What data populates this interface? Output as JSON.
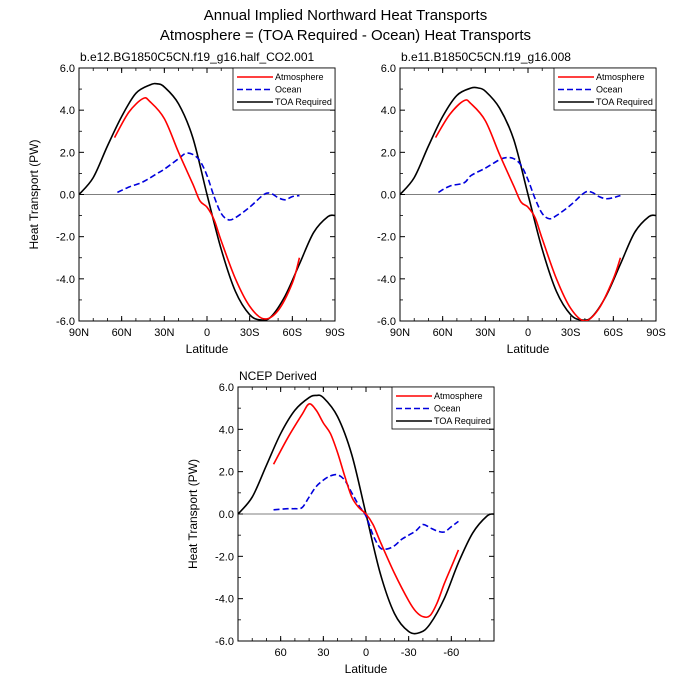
{
  "figure": {
    "title_line1": "Annual Implied Northward Heat Transports",
    "title_line2": "Atmosphere = (TOA Required - Ocean) Heat Transports"
  },
  "colors": {
    "atmosphere": "#ff0000",
    "ocean": "#0000dd",
    "toa": "#000000"
  },
  "chart_data": [
    {
      "type": "line",
      "title": "b.e12.BG1850C5CN.f19_g16.half_CO2.001",
      "xlabel": "Latitude",
      "ylabel": "Heat Transport (PW)",
      "xlim": [
        90,
        -90
      ],
      "ylim": [
        -6,
        6
      ],
      "xticks": [
        90,
        60,
        30,
        0,
        -30,
        -60,
        -90
      ],
      "xtick_labels": [
        "90N",
        "60N",
        "30N",
        "0",
        "30S",
        "60S",
        "90S"
      ],
      "yticks": [
        -6,
        -4,
        -2,
        0,
        2,
        4,
        6
      ],
      "ytick_labels": [
        "-6.0",
        "-4.0",
        "-2.0",
        "0.0",
        "2.0",
        "4.0",
        "6.0"
      ],
      "legend": [
        "Atmosphere",
        "Ocean",
        "TOA Required"
      ],
      "legend_position": "top-right",
      "series": [
        {
          "name": "Atmosphere",
          "style": "solid",
          "color": "#ff0000",
          "x": [
            65,
            55,
            45,
            40,
            30,
            20,
            10,
            5,
            0,
            -5,
            -10,
            -20,
            -30,
            -40,
            -50,
            -60,
            -65
          ],
          "y": [
            2.7,
            3.9,
            4.55,
            4.4,
            3.6,
            2.0,
            0.5,
            -0.3,
            -0.6,
            -1.2,
            -2.2,
            -4.0,
            -5.3,
            -5.9,
            -5.5,
            -4.2,
            -3.0
          ]
        },
        {
          "name": "Ocean",
          "style": "dashed",
          "color": "#0000dd",
          "x": [
            63,
            55,
            45,
            35,
            30,
            20,
            15,
            10,
            5,
            0,
            -5,
            -10,
            -15,
            -20,
            -30,
            -40,
            -45,
            -50,
            -55,
            -60,
            -65
          ],
          "y": [
            0.1,
            0.35,
            0.6,
            1.0,
            1.2,
            1.7,
            1.95,
            1.9,
            1.6,
            0.9,
            -0.1,
            -0.9,
            -1.2,
            -1.1,
            -0.6,
            0.0,
            0.05,
            -0.15,
            -0.25,
            -0.1,
            -0.05
          ]
        },
        {
          "name": "TOA Required",
          "style": "solid",
          "color": "#000000",
          "x": [
            90,
            80,
            70,
            60,
            50,
            40,
            35,
            30,
            20,
            10,
            0,
            -10,
            -20,
            -30,
            -38,
            -45,
            -55,
            -65,
            -75,
            -85,
            -90
          ],
          "y": [
            0.0,
            0.8,
            2.3,
            3.7,
            4.8,
            5.2,
            5.25,
            5.1,
            4.3,
            2.7,
            0.0,
            -2.6,
            -4.6,
            -5.7,
            -5.95,
            -5.8,
            -4.8,
            -3.3,
            -1.8,
            -1.05,
            -1.0
          ]
        }
      ]
    },
    {
      "type": "line",
      "title": "b.e11.B1850C5CN.f19_g16.008",
      "xlabel": "Latitude",
      "ylabel": "",
      "xlim": [
        90,
        -90
      ],
      "ylim": [
        -6,
        6
      ],
      "xticks": [
        90,
        60,
        30,
        0,
        -30,
        -60,
        -90
      ],
      "xtick_labels": [
        "90N",
        "60N",
        "30N",
        "0",
        "30S",
        "60S",
        "90S"
      ],
      "yticks": [
        -6,
        -4,
        -2,
        0,
        2,
        4,
        6
      ],
      "ytick_labels": [
        "-6.0",
        "-4.0",
        "-2.0",
        "0.0",
        "2.0",
        "4.0",
        "6.0"
      ],
      "legend": [
        "Atmosphere",
        "Ocean",
        "TOA Required"
      ],
      "legend_position": "top-right",
      "series": [
        {
          "name": "Atmosphere",
          "style": "solid",
          "color": "#ff0000",
          "x": [
            65,
            55,
            45,
            40,
            30,
            20,
            10,
            5,
            0,
            -5,
            -10,
            -20,
            -30,
            -40,
            -50,
            -60,
            -65
          ],
          "y": [
            2.7,
            3.8,
            4.45,
            4.3,
            3.5,
            1.9,
            0.4,
            -0.35,
            -0.6,
            -1.1,
            -2.1,
            -4.0,
            -5.4,
            -6.0,
            -5.4,
            -4.0,
            -3.0
          ]
        },
        {
          "name": "Ocean",
          "style": "dashed",
          "color": "#0000dd",
          "x": [
            63,
            55,
            45,
            40,
            30,
            20,
            15,
            10,
            5,
            0,
            -5,
            -10,
            -15,
            -20,
            -30,
            -40,
            -45,
            -50,
            -55,
            -60,
            -65
          ],
          "y": [
            0.1,
            0.4,
            0.55,
            0.9,
            1.25,
            1.65,
            1.75,
            1.7,
            1.4,
            0.7,
            -0.2,
            -0.9,
            -1.15,
            -1.0,
            -0.5,
            0.1,
            0.1,
            -0.1,
            -0.2,
            -0.15,
            -0.05
          ]
        },
        {
          "name": "TOA Required",
          "style": "solid",
          "color": "#000000",
          "x": [
            90,
            80,
            70,
            60,
            50,
            40,
            35,
            30,
            20,
            10,
            0,
            -10,
            -20,
            -30,
            -38,
            -45,
            -55,
            -65,
            -75,
            -85,
            -90
          ],
          "y": [
            0.0,
            0.8,
            2.3,
            3.7,
            4.7,
            5.05,
            5.05,
            4.9,
            4.1,
            2.6,
            0.0,
            -2.6,
            -4.6,
            -5.7,
            -5.95,
            -5.8,
            -4.8,
            -3.3,
            -1.8,
            -1.05,
            -1.0
          ]
        }
      ]
    },
    {
      "type": "line",
      "title": "NCEP Derived",
      "xlabel": "Latitude",
      "ylabel": "Heat Transport (PW)",
      "xlim": [
        90,
        -90
      ],
      "ylim": [
        -6,
        6
      ],
      "xticks": [
        60,
        30,
        0,
        -30,
        -60
      ],
      "xtick_labels": [
        "60",
        "30",
        "0",
        "-30",
        "-60"
      ],
      "yticks": [
        -6,
        -4,
        -2,
        0,
        2,
        4,
        6
      ],
      "ytick_labels": [
        "-6.0",
        "-4.0",
        "-2.0",
        "0.0",
        "2.0",
        "4.0",
        "6.0"
      ],
      "legend": [
        "Atmosphere",
        "Ocean",
        "TOA Required"
      ],
      "legend_position": "top-right",
      "series": [
        {
          "name": "Atmosphere",
          "style": "solid",
          "color": "#ff0000",
          "x": [
            65,
            55,
            45,
            40,
            35,
            30,
            25,
            20,
            15,
            10,
            5,
            0,
            -5,
            -10,
            -20,
            -30,
            -35,
            -40,
            -45,
            -50,
            -55,
            -60,
            -65
          ],
          "y": [
            2.35,
            3.6,
            4.7,
            5.2,
            4.9,
            4.3,
            3.8,
            2.9,
            1.8,
            0.8,
            0.3,
            0.0,
            -0.5,
            -1.3,
            -2.8,
            -4.1,
            -4.6,
            -4.85,
            -4.8,
            -4.2,
            -3.3,
            -2.5,
            -1.7
          ]
        },
        {
          "name": "Ocean",
          "style": "dashed",
          "color": "#0000dd",
          "x": [
            65,
            55,
            50,
            45,
            40,
            35,
            30,
            25,
            20,
            15,
            10,
            5,
            0,
            -5,
            -10,
            -15,
            -20,
            -25,
            -30,
            -35,
            -40,
            -45,
            -50,
            -55,
            -60,
            -65
          ],
          "y": [
            0.2,
            0.25,
            0.25,
            0.3,
            0.8,
            1.3,
            1.6,
            1.8,
            1.85,
            1.6,
            1.0,
            0.4,
            -0.1,
            -1.0,
            -1.6,
            -1.65,
            -1.5,
            -1.2,
            -1.0,
            -0.8,
            -0.5,
            -0.65,
            -0.8,
            -0.85,
            -0.6,
            -0.35
          ]
        },
        {
          "name": "TOA Required",
          "style": "solid",
          "color": "#000000",
          "x": [
            90,
            80,
            70,
            60,
            50,
            40,
            35,
            30,
            20,
            10,
            0,
            -10,
            -20,
            -30,
            -38,
            -45,
            -55,
            -65,
            -75,
            -85,
            -90
          ],
          "y": [
            0.0,
            0.8,
            2.3,
            3.8,
            4.9,
            5.5,
            5.6,
            5.5,
            4.6,
            2.8,
            0.0,
            -2.8,
            -4.7,
            -5.55,
            -5.6,
            -5.2,
            -4.0,
            -2.3,
            -0.9,
            -0.1,
            0.0
          ]
        }
      ]
    }
  ]
}
